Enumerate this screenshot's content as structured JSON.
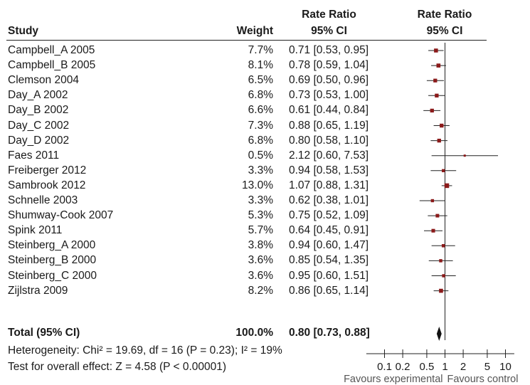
{
  "headers": {
    "study": "Study",
    "weight": "Weight",
    "rr_top": "Rate Ratio",
    "rr_ci": "95% CI",
    "plot_top": "Rate Ratio",
    "plot_ci": "95% CI"
  },
  "studies": [
    {
      "name": "Campbell_A 2005",
      "weight": "7.7%",
      "ci_text": "0.71 [0.53, 0.95]"
    },
    {
      "name": "Campbell_B 2005",
      "weight": "8.1%",
      "ci_text": "0.78 [0.59, 1.04]"
    },
    {
      "name": "Clemson 2004",
      "weight": "6.5%",
      "ci_text": "0.69 [0.50, 0.96]"
    },
    {
      "name": "Day_A 2002",
      "weight": "6.8%",
      "ci_text": "0.73 [0.53, 1.00]"
    },
    {
      "name": "Day_B 2002",
      "weight": "6.6%",
      "ci_text": "0.61 [0.44, 0.84]"
    },
    {
      "name": "Day_C 2002",
      "weight": "7.3%",
      "ci_text": "0.88 [0.65, 1.19]"
    },
    {
      "name": "Day_D 2002",
      "weight": "6.8%",
      "ci_text": "0.80 [0.58, 1.10]"
    },
    {
      "name": "Faes 2011",
      "weight": "0.5%",
      "ci_text": "2.12 [0.60, 7.53]"
    },
    {
      "name": "Freiberger 2012",
      "weight": "3.3%",
      "ci_text": "0.94 [0.58, 1.53]"
    },
    {
      "name": "Sambrook 2012",
      "weight": "13.0%",
      "ci_text": "1.07 [0.88, 1.31]"
    },
    {
      "name": "Schnelle 2003",
      "weight": "3.3%",
      "ci_text": "0.62 [0.38, 1.01]"
    },
    {
      "name": "Shumway-Cook 2007",
      "weight": "5.3%",
      "ci_text": "0.75 [0.52, 1.09]"
    },
    {
      "name": "Spink 2011",
      "weight": "5.7%",
      "ci_text": "0.64 [0.45, 0.91]"
    },
    {
      "name": "Steinberg_A 2000",
      "weight": "3.8%",
      "ci_text": "0.94 [0.60, 1.47]"
    },
    {
      "name": "Steinberg_B 2000",
      "weight": "3.6%",
      "ci_text": "0.85 [0.54, 1.35]"
    },
    {
      "name": "Steinberg_C 2000",
      "weight": "3.6%",
      "ci_text": "0.95 [0.60, 1.51]"
    },
    {
      "name": "Zijlstra 2009",
      "weight": "8.2%",
      "ci_text": "0.86 [0.65, 1.14]"
    }
  ],
  "total": {
    "label": "Total (95% CI)",
    "weight": "100.0%",
    "ci_text": "0.80 [0.73, 0.88]"
  },
  "heterogeneity": "Heterogeneity: Chi² = 19.69, df = 16 (P = 0.23); I² = 19%",
  "overall_effect": "Test for overall effect: Z = 4.58 (P < 0.00001)",
  "colors": {
    "point": "#8b1a1a",
    "line": "#222222",
    "diamond": "#111111"
  },
  "chart_data": {
    "type": "forest",
    "x_scale": "log",
    "xlim": [
      0.05,
      14
    ],
    "tick_labels": [
      "0.1",
      "0.2",
      "0.5",
      "1",
      "2",
      "5",
      "10"
    ],
    "tick_values": [
      0.1,
      0.2,
      0.5,
      1,
      2,
      5,
      10
    ],
    "xlabel_left": "Favours experimental",
    "xlabel_right": "Favours control",
    "reference_line": 1,
    "points": [
      {
        "name": "Campbell_A 2005",
        "est": 0.71,
        "lo": 0.53,
        "hi": 0.95,
        "weight": 7.7
      },
      {
        "name": "Campbell_B 2005",
        "est": 0.78,
        "lo": 0.59,
        "hi": 1.04,
        "weight": 8.1
      },
      {
        "name": "Clemson 2004",
        "est": 0.69,
        "lo": 0.5,
        "hi": 0.96,
        "weight": 6.5
      },
      {
        "name": "Day_A 2002",
        "est": 0.73,
        "lo": 0.53,
        "hi": 1.0,
        "weight": 6.8
      },
      {
        "name": "Day_B 2002",
        "est": 0.61,
        "lo": 0.44,
        "hi": 0.84,
        "weight": 6.6
      },
      {
        "name": "Day_C 2002",
        "est": 0.88,
        "lo": 0.65,
        "hi": 1.19,
        "weight": 7.3
      },
      {
        "name": "Day_D 2002",
        "est": 0.8,
        "lo": 0.58,
        "hi": 1.1,
        "weight": 6.8
      },
      {
        "name": "Faes 2011",
        "est": 2.12,
        "lo": 0.6,
        "hi": 7.53,
        "weight": 0.5
      },
      {
        "name": "Freiberger 2012",
        "est": 0.94,
        "lo": 0.58,
        "hi": 1.53,
        "weight": 3.3
      },
      {
        "name": "Sambrook 2012",
        "est": 1.07,
        "lo": 0.88,
        "hi": 1.31,
        "weight": 13.0
      },
      {
        "name": "Schnelle 2003",
        "est": 0.62,
        "lo": 0.38,
        "hi": 1.01,
        "weight": 3.3
      },
      {
        "name": "Shumway-Cook 2007",
        "est": 0.75,
        "lo": 0.52,
        "hi": 1.09,
        "weight": 5.3
      },
      {
        "name": "Spink 2011",
        "est": 0.64,
        "lo": 0.45,
        "hi": 0.91,
        "weight": 5.7
      },
      {
        "name": "Steinberg_A 2000",
        "est": 0.94,
        "lo": 0.6,
        "hi": 1.47,
        "weight": 3.8
      },
      {
        "name": "Steinberg_B 2000",
        "est": 0.85,
        "lo": 0.54,
        "hi": 1.35,
        "weight": 3.6
      },
      {
        "name": "Steinberg_C 2000",
        "est": 0.95,
        "lo": 0.6,
        "hi": 1.51,
        "weight": 3.6
      },
      {
        "name": "Zijlstra 2009",
        "est": 0.86,
        "lo": 0.65,
        "hi": 1.14,
        "weight": 8.2
      }
    ],
    "pooled": {
      "est": 0.8,
      "lo": 0.73,
      "hi": 0.88
    }
  }
}
